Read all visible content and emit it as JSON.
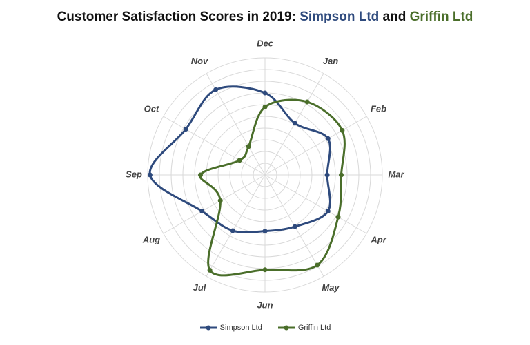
{
  "title": {
    "prefix": "Customer Satisfaction Scores in 2019: ",
    "series_a": "Simpson Ltd",
    "joiner": " and ",
    "series_b": "Griffin Ltd"
  },
  "colors": {
    "simpson": "#2e4a7d",
    "griffin": "#4a6e2a",
    "grid": "#d9d9d9",
    "label": "#444444"
  },
  "chart_data": {
    "type": "radar",
    "title": "Customer Satisfaction Scores in 2019: Simpson Ltd and Griffin Ltd",
    "categories": [
      "Dec",
      "Jan",
      "Feb",
      "Mar",
      "Apr",
      "May",
      "Jun",
      "Jul",
      "Aug",
      "Sep",
      "Oct",
      "Nov"
    ],
    "rlim": [
      0,
      10
    ],
    "grid_rings": 10,
    "series": [
      {
        "name": "Simpson Ltd",
        "values": [
          7.0,
          5.1,
          6.2,
          5.3,
          6.2,
          5.1,
          4.8,
          5.5,
          6.2,
          9.8,
          7.8,
          8.4
        ]
      },
      {
        "name": "Griffin Ltd",
        "values": [
          5.8,
          7.2,
          7.6,
          6.5,
          7.2,
          8.9,
          8.1,
          9.4,
          4.4,
          5.5,
          2.5,
          2.8
        ]
      }
    ],
    "legend_position": "bottom"
  }
}
